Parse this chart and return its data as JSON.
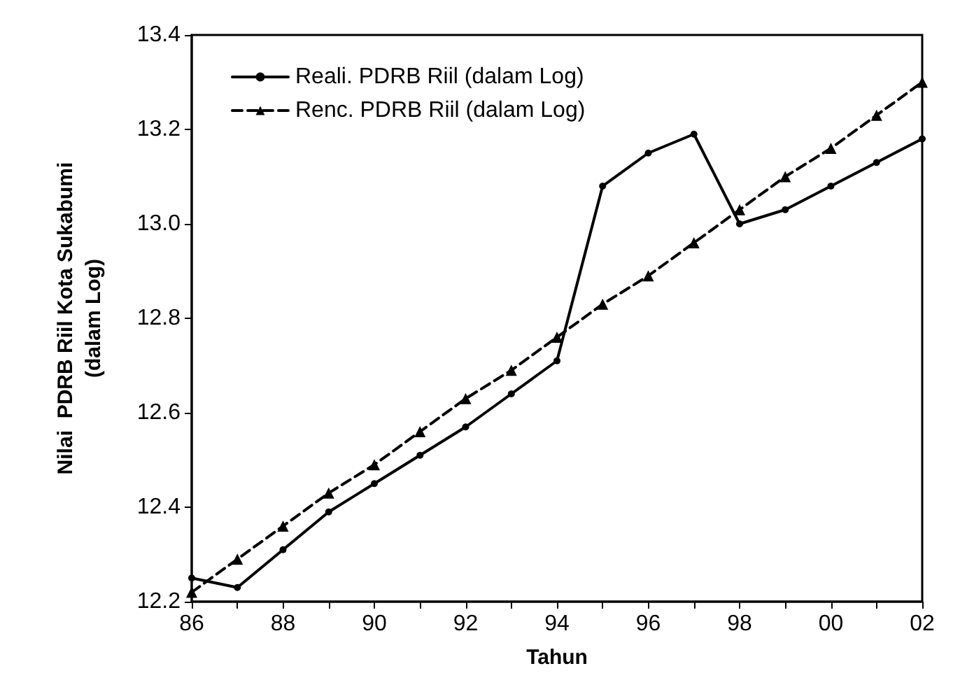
{
  "chart_data": {
    "type": "line",
    "xlabel": "Tahun",
    "ylabel": "Nilai  PDRB Riil Kota Sukabumi\n(dalam Log)",
    "x": [
      1986,
      1987,
      1988,
      1989,
      1990,
      1991,
      1992,
      1993,
      1994,
      1995,
      1996,
      1997,
      1998,
      1999,
      2000,
      2001,
      2002
    ],
    "series": [
      {
        "name": "Reali. PDRB Riil (dalam Log)",
        "color": "#000000",
        "marker": "circle",
        "line_style": "solid",
        "values": [
          12.25,
          12.23,
          12.31,
          12.39,
          12.45,
          12.51,
          12.57,
          12.64,
          12.71,
          13.08,
          13.15,
          13.19,
          13.0,
          13.03,
          13.08,
          13.13,
          13.18
        ]
      },
      {
        "name": "Renc. PDRB Riil (dalam Log)",
        "color": "#000000",
        "marker": "triangle",
        "line_style": "dashed",
        "values": [
          12.22,
          12.29,
          12.36,
          12.43,
          12.49,
          12.56,
          12.63,
          12.69,
          12.76,
          12.83,
          12.89,
          12.96,
          13.03,
          13.1,
          13.16,
          13.23,
          13.3
        ]
      }
    ],
    "xlim": [
      1986,
      2002
    ],
    "xticks": [
      {
        "value": 1986,
        "label": "86"
      },
      {
        "value": 1987,
        "label": null
      },
      {
        "value": 1988,
        "label": "88"
      },
      {
        "value": 1989,
        "label": null
      },
      {
        "value": 1990,
        "label": "90"
      },
      {
        "value": 1991,
        "label": null
      },
      {
        "value": 1992,
        "label": "92"
      },
      {
        "value": 1993,
        "label": null
      },
      {
        "value": 1994,
        "label": "94"
      },
      {
        "value": 1995,
        "label": null
      },
      {
        "value": 1996,
        "label": "96"
      },
      {
        "value": 1997,
        "label": null
      },
      {
        "value": 1998,
        "label": "98"
      },
      {
        "value": 1999,
        "label": null
      },
      {
        "value": 2000,
        "label": "00"
      },
      {
        "value": 2001,
        "label": null
      },
      {
        "value": 2002,
        "label": "02"
      }
    ],
    "ylim": [
      12.2,
      13.4
    ],
    "yticks": [
      12.2,
      12.4,
      12.6,
      12.8,
      {
        "value": 13.0,
        "label": "13.0"
      },
      13.2,
      13.4
    ],
    "grid": false,
    "legend": "top left"
  }
}
